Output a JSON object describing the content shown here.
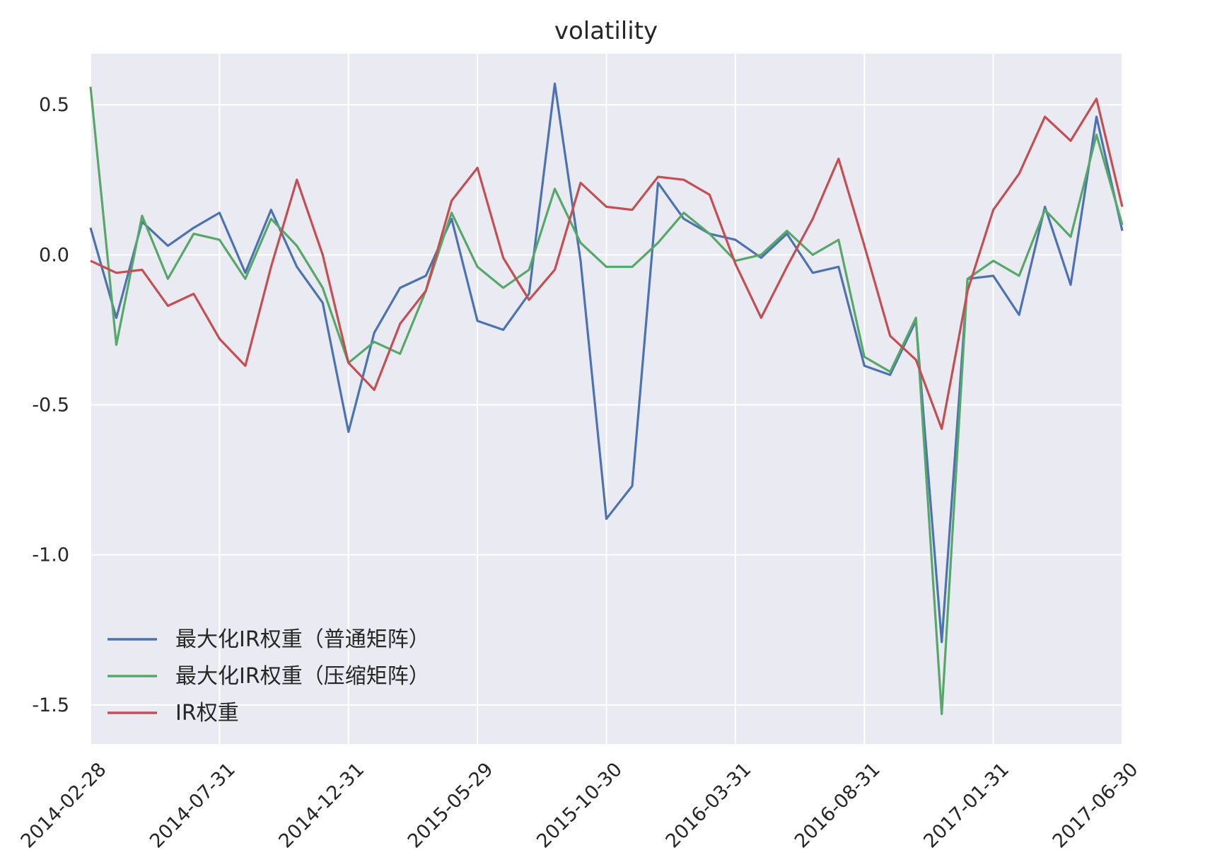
{
  "chart_data": {
    "type": "line",
    "title": "volatility",
    "xlabel": "",
    "ylabel": "",
    "x": [
      "2014-02-28",
      "2014-03-31",
      "2014-04-30",
      "2014-05-30",
      "2014-06-30",
      "2014-07-31",
      "2014-08-29",
      "2014-09-30",
      "2014-10-31",
      "2014-11-28",
      "2014-12-31",
      "2015-01-30",
      "2015-02-27",
      "2015-03-31",
      "2015-04-30",
      "2015-05-29",
      "2015-06-30",
      "2015-07-31",
      "2015-08-31",
      "2015-09-30",
      "2015-10-30",
      "2015-11-30",
      "2015-12-31",
      "2016-01-29",
      "2016-02-29",
      "2016-03-31",
      "2016-04-29",
      "2016-05-31",
      "2016-06-30",
      "2016-07-29",
      "2016-08-31",
      "2016-09-30",
      "2016-10-31",
      "2016-11-30",
      "2016-12-30",
      "2017-01-31",
      "2017-02-28",
      "2017-03-31",
      "2017-04-28",
      "2017-05-31",
      "2017-06-30"
    ],
    "x_ticks": [
      "2014-02-28",
      "2014-07-31",
      "2014-12-31",
      "2015-05-29",
      "2015-10-30",
      "2016-03-31",
      "2016-08-31",
      "2017-01-31",
      "2017-06-30"
    ],
    "y_ticks": [
      "0.5",
      "0.0",
      "-0.5",
      "-1.0",
      "-1.5"
    ],
    "ylim": [
      -1.63,
      0.67
    ],
    "grid": true,
    "legend_position": "lower-left",
    "series": [
      {
        "name": "最大化IR权重（普通矩阵）",
        "color": "#4c72b0",
        "values": [
          0.09,
          -0.21,
          0.11,
          0.03,
          0.09,
          0.14,
          -0.06,
          0.15,
          -0.04,
          -0.16,
          -0.59,
          -0.26,
          -0.11,
          -0.07,
          0.12,
          -0.22,
          -0.25,
          -0.13,
          0.57,
          -0.02,
          -0.88,
          -0.77,
          0.24,
          0.12,
          0.07,
          0.05,
          -0.01,
          0.07,
          -0.06,
          -0.04,
          -0.37,
          -0.4,
          -0.22,
          -1.29,
          -0.08,
          -0.07,
          -0.2,
          0.16,
          -0.1,
          0.46,
          0.08
        ]
      },
      {
        "name": "最大化IR权重（压缩矩阵）",
        "color": "#55a868",
        "values": [
          0.56,
          -0.3,
          0.13,
          -0.08,
          0.07,
          0.05,
          -0.08,
          0.12,
          0.03,
          -0.11,
          -0.36,
          -0.29,
          -0.33,
          -0.12,
          0.14,
          -0.04,
          -0.11,
          -0.05,
          0.22,
          0.04,
          -0.04,
          -0.04,
          0.04,
          0.14,
          0.07,
          -0.02,
          0.0,
          0.08,
          0.0,
          0.05,
          -0.34,
          -0.39,
          -0.21,
          -1.53,
          -0.08,
          -0.02,
          -0.07,
          0.15,
          0.06,
          0.4,
          0.1
        ]
      },
      {
        "name": "IR权重",
        "color": "#c44e52",
        "values": [
          -0.02,
          -0.06,
          -0.05,
          -0.17,
          -0.13,
          -0.28,
          -0.37,
          -0.04,
          0.25,
          0.0,
          -0.36,
          -0.45,
          -0.23,
          -0.12,
          0.18,
          0.29,
          -0.01,
          -0.15,
          -0.05,
          0.24,
          0.16,
          0.15,
          0.26,
          0.25,
          0.2,
          -0.03,
          -0.21,
          -0.04,
          0.12,
          0.32,
          0.03,
          -0.27,
          -0.35,
          -0.58,
          -0.12,
          0.15,
          0.27,
          0.46,
          0.38,
          0.52,
          0.16
        ]
      }
    ]
  }
}
